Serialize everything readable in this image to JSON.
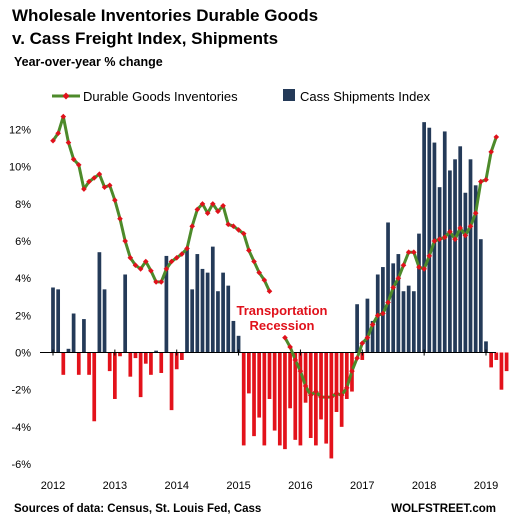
{
  "chart_data": {
    "type": "bar+line",
    "title_lines": [
      "Wholesale Inventories Durable Goods",
      "v. Cass Freight Index, Shipments"
    ],
    "subtitle": "Year-over-year % change",
    "ylim": [
      -6,
      13
    ],
    "yticks": [
      12,
      10,
      8,
      6,
      4,
      2,
      0,
      -2,
      -4,
      -6
    ],
    "ytick_labels": [
      "12%",
      "10%",
      "8%",
      "6%",
      "4%",
      "2%",
      "0%",
      "-2%",
      "-4%",
      "-6%"
    ],
    "xlim": [
      2012,
      2019.2
    ],
    "xticks": [
      2012,
      2013,
      2014,
      2015,
      2016,
      2017,
      2018,
      2019
    ],
    "xtick_labels": [
      "2012",
      "2013",
      "2014",
      "2015",
      "2016",
      "2017",
      "2018",
      "2019"
    ],
    "x_start": 2012.0,
    "x_step": 0.08333,
    "series": [
      {
        "name": "Cass Shipments Index",
        "kind": "bar",
        "positive_color": "#243a58",
        "negative_color": "#e3121b",
        "values": [
          3.5,
          3.4,
          -1.2,
          0.2,
          2.1,
          -1.2,
          1.8,
          -1.2,
          -3.7,
          5.4,
          3.4,
          -1.0,
          -2.5,
          -0.2,
          4.2,
          -1.3,
          -0.3,
          -2.4,
          -0.6,
          -1.2,
          0.1,
          -1.1,
          5.2,
          -3.1,
          -0.9,
          -0.4,
          5.6,
          3.4,
          5.3,
          4.5,
          4.3,
          5.7,
          3.3,
          4.3,
          3.6,
          1.7,
          0.9,
          -5.0,
          -2.2,
          -4.5,
          -3.5,
          -5.0,
          -2.5,
          -4.2,
          -5.0,
          -5.2,
          -3.0,
          -4.7,
          -5.0,
          -2.7,
          -4.6,
          -5.0,
          -3.6,
          -4.9,
          -5.7,
          -3.2,
          -4.0,
          -2.5,
          -2.1,
          2.6,
          -0.4,
          2.9,
          1.7,
          4.2,
          4.6,
          7.0,
          4.8,
          5.3,
          3.3,
          3.6,
          3.3,
          6.4,
          12.4,
          12.1,
          11.3,
          8.9,
          11.9,
          9.8,
          10.4,
          11.1,
          8.6,
          10.4,
          9.0,
          6.1,
          0.6,
          -0.8,
          -0.4,
          -2.0,
          -1.0
        ]
      },
      {
        "name": "Durable Goods Inventories",
        "kind": "line",
        "line_color": "#4d8a2a",
        "marker_color": "#e0111b",
        "values": [
          11.4,
          11.8,
          12.7,
          11.3,
          10.4,
          10.1,
          8.8,
          9.2,
          9.4,
          9.6,
          8.9,
          9.0,
          8.2,
          7.2,
          6.0,
          5.1,
          4.7,
          4.5,
          4.9,
          4.4,
          3.8,
          3.8,
          4.5,
          4.9,
          5.1,
          5.3,
          5.6,
          6.8,
          7.7,
          8.0,
          7.5,
          8.0,
          7.6,
          7.9,
          6.9,
          6.8,
          6.6,
          6.4,
          5.5,
          4.9,
          4.3,
          3.9,
          3.3,
          null,
          null,
          0.8,
          0.3,
          -0.4,
          -1.0,
          -1.8,
          -2.3,
          -2.1,
          -2.4,
          -2.4,
          -2.4,
          -2.2,
          -2.3,
          -1.9,
          -1.0,
          -0.3,
          0.5,
          0.8,
          1.5,
          2.0,
          2.1,
          2.7,
          3.5,
          4.0,
          4.7,
          5.4,
          5.4,
          4.6,
          4.5,
          5.2,
          6.0,
          6.1,
          6.2,
          6.5,
          6.1,
          6.7,
          6.3,
          6.8,
          7.5,
          9.2,
          9.3,
          10.8,
          11.6
        ]
      }
    ],
    "legend_placement": "top",
    "annotation_lines": [
      "Transportation",
      "Recession"
    ],
    "grid": false
  },
  "footer": {
    "source": "Sources of data: Census, St. Louis Fed, Cass",
    "brand": "WOLFSTREET.com"
  }
}
